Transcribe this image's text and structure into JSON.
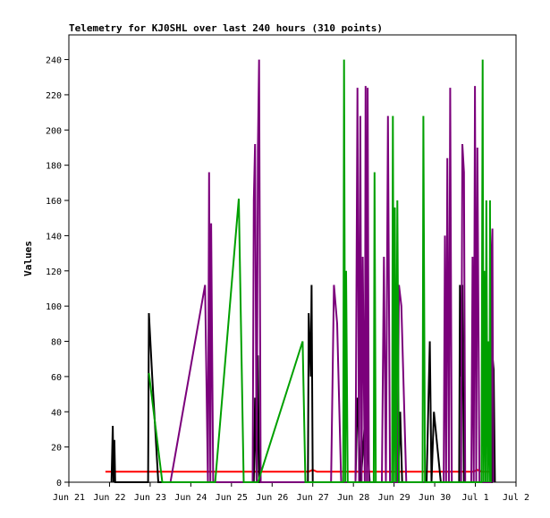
{
  "chart_data": {
    "type": "line",
    "title": "Telemetry for KJ0SHL over last 240 hours (310 points)",
    "xlabel": "",
    "ylabel": "Values",
    "ylim": [
      0,
      254
    ],
    "xlim": [
      0,
      11
    ],
    "grid": false,
    "legend": "none",
    "x_ticks": [
      {
        "x": 0,
        "label": "Jun 21"
      },
      {
        "x": 1,
        "label": "Jun 22"
      },
      {
        "x": 2,
        "label": "Jun 23"
      },
      {
        "x": 3,
        "label": "Jun 24"
      },
      {
        "x": 4,
        "label": "Jun 25"
      },
      {
        "x": 5,
        "label": "Jun 26"
      },
      {
        "x": 6,
        "label": "Jun 27"
      },
      {
        "x": 7,
        "label": "Jun 28"
      },
      {
        "x": 8,
        "label": "Jun 29"
      },
      {
        "x": 9,
        "label": "Jun 30"
      },
      {
        "x": 10,
        "label": "Jul 1"
      },
      {
        "x": 11,
        "label": "Jul 2"
      }
    ],
    "y_ticks": [
      0,
      20,
      40,
      60,
      80,
      100,
      120,
      140,
      160,
      180,
      200,
      220,
      240
    ],
    "series": [
      {
        "color": "#ff0000",
        "points": [
          [
            0.9,
            6
          ],
          [
            5.9,
            6
          ],
          [
            6.0,
            7
          ],
          [
            6.1,
            6
          ],
          [
            7.9,
            6
          ],
          [
            9.95,
            6
          ],
          [
            10.05,
            7
          ],
          [
            10.15,
            6
          ],
          [
            10.4,
            6
          ]
        ]
      },
      {
        "color": "#000000",
        "points": [
          [
            1.05,
            0
          ],
          [
            1.08,
            32
          ],
          [
            1.1,
            0
          ],
          [
            1.12,
            24
          ],
          [
            1.14,
            0
          ],
          [
            1.95,
            0
          ],
          [
            1.97,
            96
          ],
          [
            2.05,
            60
          ],
          [
            2.2,
            0
          ],
          [
            2.4,
            0
          ],
          [
            4.55,
            0
          ],
          [
            4.58,
            48
          ],
          [
            4.62,
            0
          ],
          [
            4.65,
            72
          ],
          [
            4.68,
            0
          ],
          [
            5.88,
            0
          ],
          [
            5.9,
            96
          ],
          [
            5.95,
            60
          ],
          [
            5.97,
            112
          ],
          [
            6.0,
            0
          ],
          [
            7.05,
            0
          ],
          [
            7.1,
            48
          ],
          [
            7.18,
            0
          ],
          [
            7.3,
            40
          ],
          [
            7.4,
            0
          ],
          [
            8.1,
            0
          ],
          [
            8.15,
            40
          ],
          [
            8.2,
            0
          ],
          [
            8.8,
            0
          ],
          [
            8.88,
            80
          ],
          [
            8.92,
            0
          ],
          [
            8.98,
            40
          ],
          [
            9.15,
            0
          ],
          [
            9.6,
            0
          ],
          [
            9.62,
            112
          ],
          [
            9.65,
            60
          ],
          [
            9.68,
            112
          ],
          [
            9.72,
            0
          ],
          [
            10.4,
            0
          ],
          [
            10.42,
            72
          ],
          [
            10.45,
            64
          ],
          [
            10.48,
            0
          ]
        ]
      },
      {
        "color": "#7b007b",
        "points": [
          [
            2.5,
            0
          ],
          [
            3.35,
            112
          ],
          [
            3.42,
            0
          ],
          [
            3.45,
            176
          ],
          [
            3.48,
            0
          ],
          [
            3.5,
            147
          ],
          [
            3.52,
            88
          ],
          [
            3.55,
            0
          ],
          [
            4.52,
            0
          ],
          [
            4.55,
            160
          ],
          [
            4.58,
            192
          ],
          [
            4.62,
            0
          ],
          [
            4.65,
            190
          ],
          [
            4.68,
            240
          ],
          [
            4.72,
            0
          ],
          [
            6.45,
            0
          ],
          [
            6.52,
            112
          ],
          [
            6.6,
            90
          ],
          [
            6.7,
            0
          ],
          [
            7.05,
            0
          ],
          [
            7.1,
            224
          ],
          [
            7.14,
            0
          ],
          [
            7.17,
            208
          ],
          [
            7.2,
            0
          ],
          [
            7.23,
            128
          ],
          [
            7.28,
            0
          ],
          [
            7.3,
            225
          ],
          [
            7.33,
            0
          ],
          [
            7.35,
            224
          ],
          [
            7.38,
            0
          ],
          [
            7.7,
            0
          ],
          [
            7.75,
            128
          ],
          [
            7.8,
            0
          ],
          [
            7.85,
            208
          ],
          [
            7.9,
            0
          ],
          [
            8.08,
            0
          ],
          [
            8.12,
            112
          ],
          [
            8.18,
            100
          ],
          [
            8.3,
            0
          ],
          [
            9.22,
            0
          ],
          [
            9.25,
            140
          ],
          [
            9.28,
            0
          ],
          [
            9.31,
            184
          ],
          [
            9.35,
            0
          ],
          [
            9.38,
            224
          ],
          [
            9.42,
            0
          ],
          [
            9.65,
            0
          ],
          [
            9.68,
            192
          ],
          [
            9.72,
            176
          ],
          [
            9.75,
            0
          ],
          [
            9.9,
            0
          ],
          [
            9.93,
            128
          ],
          [
            9.96,
            0
          ],
          [
            9.99,
            225
          ],
          [
            10.02,
            0
          ],
          [
            10.05,
            190
          ],
          [
            10.1,
            0
          ],
          [
            10.38,
            0
          ],
          [
            10.4,
            130
          ],
          [
            10.42,
            144
          ],
          [
            10.44,
            0
          ]
        ]
      },
      {
        "color": "#00a000",
        "points": [
          [
            1.97,
            62
          ],
          [
            2.3,
            0
          ],
          [
            3.6,
            0
          ],
          [
            4.18,
            161
          ],
          [
            4.3,
            0
          ],
          [
            4.65,
            0
          ],
          [
            5.75,
            80
          ],
          [
            5.82,
            0
          ],
          [
            6.75,
            0
          ],
          [
            6.77,
            240
          ],
          [
            6.8,
            0
          ],
          [
            6.82,
            120
          ],
          [
            6.86,
            0
          ],
          [
            7.5,
            0
          ],
          [
            7.52,
            176
          ],
          [
            7.55,
            0
          ],
          [
            7.95,
            0
          ],
          [
            7.97,
            208
          ],
          [
            8.0,
            0
          ],
          [
            8.02,
            156
          ],
          [
            8.05,
            0
          ],
          [
            8.08,
            160
          ],
          [
            8.12,
            0
          ],
          [
            8.7,
            0
          ],
          [
            8.72,
            208
          ],
          [
            8.76,
            0
          ],
          [
            10.15,
            0
          ],
          [
            10.18,
            240
          ],
          [
            10.2,
            0
          ],
          [
            10.22,
            120
          ],
          [
            10.25,
            0
          ],
          [
            10.27,
            160
          ],
          [
            10.3,
            0
          ],
          [
            10.32,
            80
          ],
          [
            10.35,
            0
          ],
          [
            10.36,
            160
          ],
          [
            10.38,
            0
          ]
        ]
      }
    ]
  }
}
